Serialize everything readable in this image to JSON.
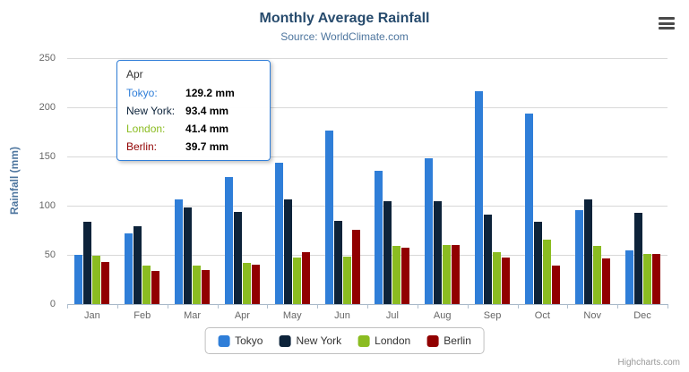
{
  "chart_data": {
    "type": "bar",
    "title": "Monthly Average Rainfall",
    "subtitle": "Source: WorldClimate.com",
    "xlabel": "",
    "ylabel": "Rainfall (mm)",
    "ylim": [
      0,
      250
    ],
    "yticks": [
      0,
      50,
      100,
      150,
      200,
      250
    ],
    "grid": true,
    "legend_position": "bottom",
    "categories": [
      "Jan",
      "Feb",
      "Mar",
      "Apr",
      "May",
      "Jun",
      "Jul",
      "Aug",
      "Sep",
      "Oct",
      "Nov",
      "Dec"
    ],
    "series": [
      {
        "name": "Tokyo",
        "color": "#2f7ed8",
        "values": [
          49.9,
          71.5,
          106.4,
          129.2,
          144.0,
          176.0,
          135.6,
          148.5,
          216.4,
          194.1,
          95.6,
          54.4
        ]
      },
      {
        "name": "New York",
        "color": "#0d233a",
        "values": [
          83.6,
          78.8,
          98.5,
          93.4,
          106.0,
          84.5,
          105.0,
          104.3,
          91.2,
          83.5,
          106.6,
          92.3
        ]
      },
      {
        "name": "London",
        "color": "#8bbc21",
        "values": [
          48.9,
          38.8,
          39.3,
          41.4,
          47.0,
          48.3,
          59.0,
          59.6,
          52.4,
          65.2,
          59.3,
          51.2
        ]
      },
      {
        "name": "Berlin",
        "color": "#910000",
        "values": [
          42.4,
          33.2,
          34.5,
          39.7,
          52.6,
          75.5,
          57.4,
          60.4,
          47.6,
          39.1,
          46.8,
          51.1
        ]
      }
    ]
  },
  "tooltip": {
    "header": "Apr",
    "rows": [
      {
        "name": "Tokyo",
        "value": "129.2 mm",
        "color": "#2f7ed8"
      },
      {
        "name": "New York",
        "value": "93.4 mm",
        "color": "#0d233a"
      },
      {
        "name": "London",
        "value": "41.4 mm",
        "color": "#8bbc21"
      },
      {
        "name": "Berlin",
        "value": "39.7 mm",
        "color": "#910000"
      }
    ]
  },
  "export": {
    "icon": "hamburger-menu-icon"
  },
  "credits": "Highcharts.com"
}
